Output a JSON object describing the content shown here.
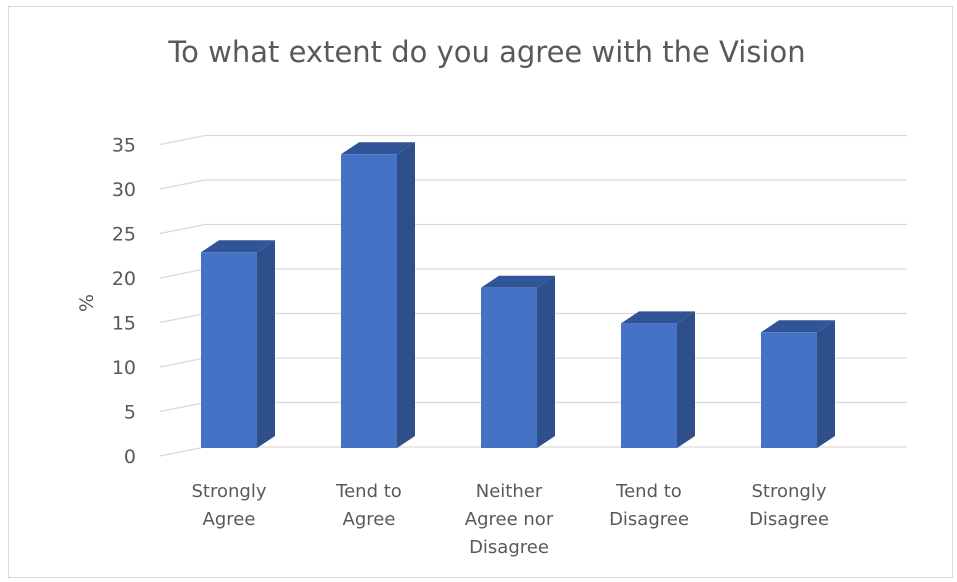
{
  "chart_data": {
    "type": "bar",
    "title": "To what extent do you agree with the Vision",
    "xlabel": "",
    "ylabel": "%",
    "ylim": [
      0,
      35
    ],
    "yticks": [
      0,
      5,
      10,
      15,
      20,
      25,
      30,
      35
    ],
    "categories": [
      [
        "Strongly",
        "Agree"
      ],
      [
        "Tend to",
        "Agree"
      ],
      [
        "Neither",
        "Agree nor",
        "Disagree"
      ],
      [
        "Tend to",
        "Disagree"
      ],
      [
        "Strongly",
        "Disagree"
      ]
    ],
    "values": [
      22,
      33,
      18,
      14,
      13
    ],
    "grid": true,
    "legend": "none",
    "bar_style": "3d-column",
    "colors": {
      "front": "#4472c4",
      "top": "#2f5597",
      "side": "#2e4f8a",
      "grid": "#d9d9d9",
      "text": "#595959"
    }
  }
}
